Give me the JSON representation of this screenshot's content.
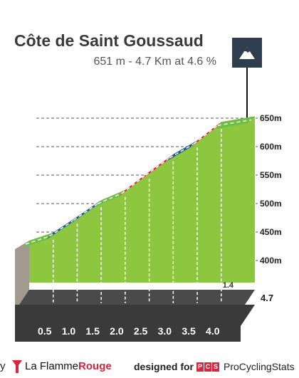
{
  "title": "Côte de Saint Goussaud",
  "subtitle": "651 m - 4.7 Km at 4.6 %",
  "badge_icon": "mountain-icon",
  "footer": {
    "prefix": "y",
    "brand_left": "La Flamme",
    "brand_right": "Rouge",
    "designed_for": "designed for",
    "pcs_letters": [
      "P",
      "C",
      "S"
    ],
    "brand_pcs": "ProCyclingStats"
  },
  "colors": {
    "green_fill": "#8dc63f",
    "green_band": "#6fbe44",
    "blue_band": "#1f5f8b",
    "red_band": "#e0253b",
    "navy_band": "#1c4e80",
    "base_dark": "#3a3a3a",
    "start_wall": "#a09a8f"
  },
  "chart_data": {
    "type": "area",
    "elevation_ticks": [
      "400m",
      "450m",
      "500m",
      "550m",
      "600m",
      "650m"
    ],
    "ylim": [
      390,
      670
    ],
    "km_markers": [
      "0.5",
      "1.0",
      "1.5",
      "2.0",
      "2.5",
      "3.0",
      "3.5",
      "4.0"
    ],
    "total_distance_label": "4.7",
    "segments": [
      {
        "start_km": 0.0,
        "end_km": 0.5,
        "gradient": 2.8,
        "color": "green"
      },
      {
        "start_km": 0.5,
        "end_km": 1.0,
        "gradient": 5.6,
        "color": "blue"
      },
      {
        "start_km": 1.0,
        "end_km": 1.5,
        "gradient": 5.8,
        "color": "blue"
      },
      {
        "start_km": 1.5,
        "end_km": 2.0,
        "gradient": 3.6,
        "color": "green"
      },
      {
        "start_km": 2.0,
        "end_km": 2.5,
        "gradient": 6.4,
        "color": "red"
      },
      {
        "start_km": 2.5,
        "end_km": 3.0,
        "gradient": 6.1,
        "color": "red"
      },
      {
        "start_km": 3.0,
        "end_km": 3.5,
        "gradient": 4.9,
        "color": "blue"
      },
      {
        "start_km": 3.5,
        "end_km": 4.0,
        "gradient": 6.5,
        "color": "red"
      },
      {
        "start_km": 4.0,
        "end_km": 4.7,
        "gradient": 1.4,
        "color": "green"
      }
    ]
  }
}
